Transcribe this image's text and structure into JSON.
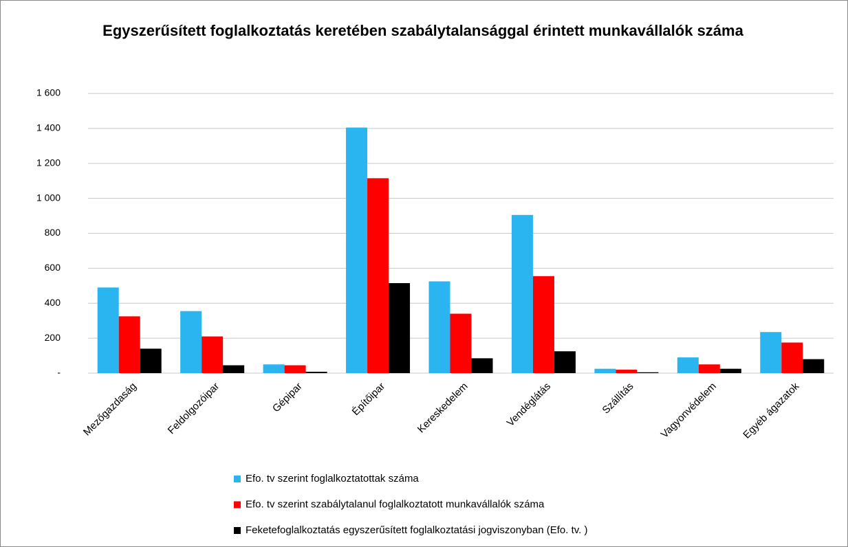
{
  "chart_data": {
    "type": "bar",
    "title": "Egyszerűsített foglalkoztatás keretében szabálytalansággal érintett munkavállalók száma",
    "categories": [
      "Mezőgazdaság",
      "Feldolgozóipar",
      "Gépipar",
      "Építőipar",
      "Kereskedelem",
      "Vendéglátás",
      "Szállítás",
      "Vagyonvédelem",
      "Egyéb ágazatok"
    ],
    "series": [
      {
        "name": "Efo. tv szerint foglalkoztatottak száma",
        "color": "#2bb5f0",
        "values": [
          490,
          355,
          50,
          1405,
          525,
          905,
          25,
          90,
          235
        ]
      },
      {
        "name": "Efo. tv szerint szabálytalanul foglalkoztatott munkavállalók száma",
        "color": "#ff0000",
        "values": [
          325,
          210,
          45,
          1115,
          340,
          555,
          20,
          50,
          175
        ]
      },
      {
        "name": "Feketefoglalkoztatás egyszerűsített foglalkoztatási jogviszonyban (Efo. tv. )",
        "color": "#000000",
        "values": [
          140,
          45,
          8,
          515,
          85,
          125,
          5,
          25,
          80
        ]
      }
    ],
    "ylim": [
      0,
      1600
    ],
    "yticks": [
      {
        "value": 0,
        "label": "-"
      },
      200,
      400,
      600,
      800,
      {
        "value": 1000,
        "label": "1 000"
      },
      {
        "value": 1200,
        "label": "1 200"
      },
      {
        "value": 1400,
        "label": "1 400"
      },
      {
        "value": 1600,
        "label": "1 600"
      }
    ],
    "grid": true,
    "legend": "bottom"
  }
}
